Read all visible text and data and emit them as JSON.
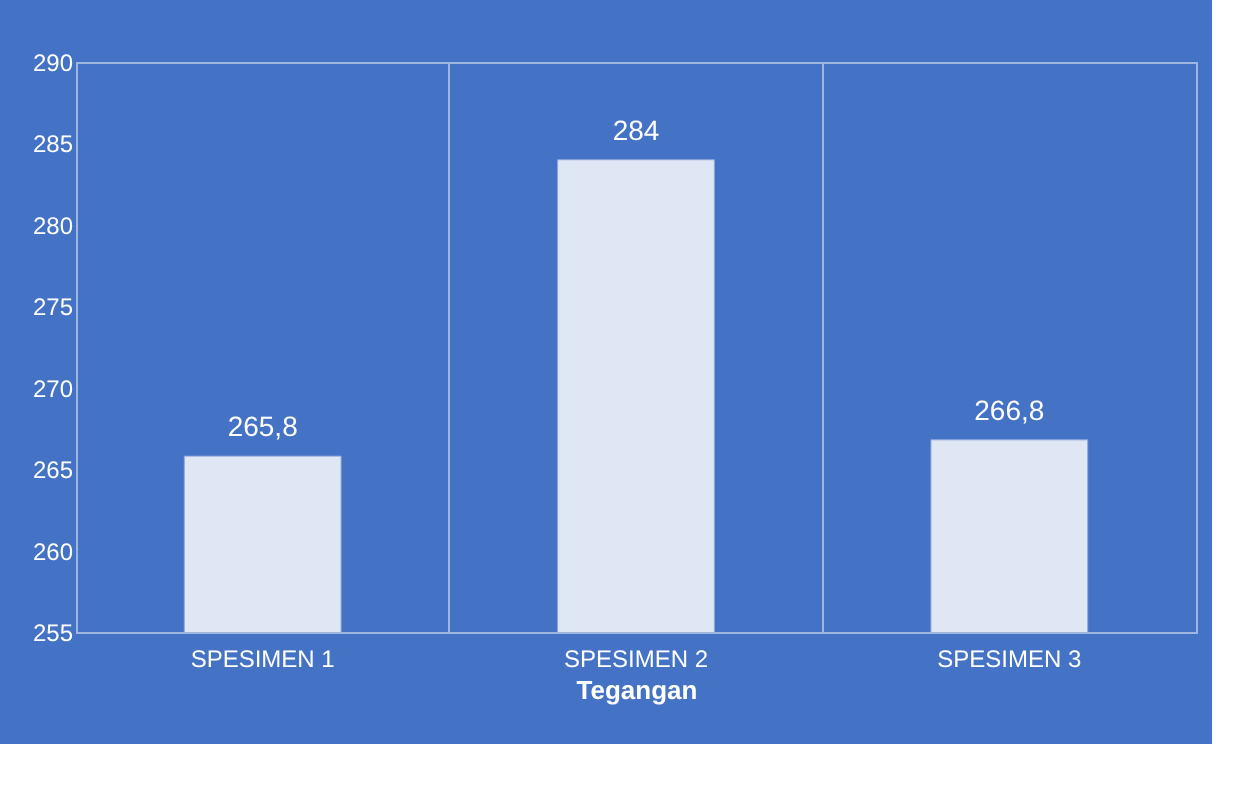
{
  "chart_data": {
    "type": "bar",
    "xlabel": "Tegangan",
    "categories": [
      "SPESIMEN 1",
      "SPESIMEN 2",
      "SPESIMEN 3"
    ],
    "values": [
      265.8,
      284,
      266.8
    ],
    "value_labels": [
      "265,8",
      "284",
      "266,8"
    ],
    "color": "#dfe6f4",
    "ylim": [
      255,
      290
    ],
    "yticks": [
      255,
      260,
      265,
      270,
      275,
      280,
      285,
      290
    ],
    "grid": "x"
  }
}
